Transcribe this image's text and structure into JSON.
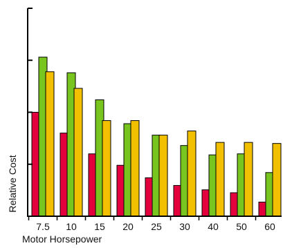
{
  "chart_data": {
    "type": "bar",
    "categories": [
      "7.5",
      "10",
      "15",
      "20",
      "25",
      "30",
      "40",
      "50",
      "60"
    ],
    "series": [
      {
        "values": [
          0.5,
          0.4,
          0.3,
          0.245,
          0.185,
          0.148,
          0.127,
          0.113,
          0.068
        ],
        "color": "#e3003c"
      },
      {
        "values": [
          0.765,
          0.69,
          0.56,
          0.445,
          0.39,
          0.34,
          0.295,
          0.3,
          0.21
        ],
        "color": "#77c51e"
      },
      {
        "values": [
          0.695,
          0.615,
          0.46,
          0.46,
          0.39,
          0.41,
          0.355,
          0.355,
          0.35
        ],
        "color": "#f2c000"
      }
    ],
    "xlabel": "Motor Horsepower",
    "ylabel": "Relative Cost",
    "ylim": [
      0,
      1
    ],
    "y_ticks": [
      0,
      0.25,
      0.5,
      0.75,
      1
    ],
    "y_tick_labels_shown": false,
    "grid": false,
    "legend": "none"
  }
}
